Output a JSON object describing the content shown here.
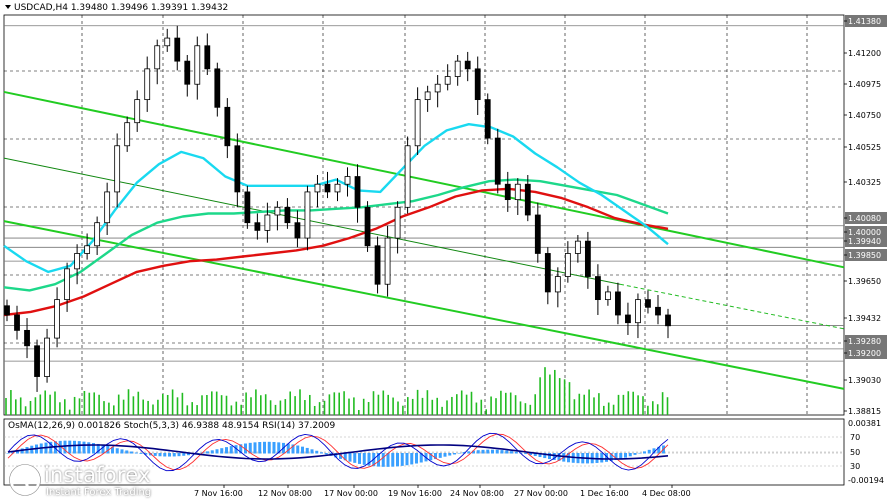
{
  "symbol_header": "USDCAD,H4  1.39480 1.39496 1.39391 1.39432",
  "oscillator_header": "OsMA(12,26,9) 0.001826  Stoch(5,3,3) 46.9388 48.9154  RSI(14) 37.2009",
  "logo": {
    "brand": "instaforex",
    "tagline": "Instant Forex Trading"
  },
  "colors": {
    "ma_fast": "#19d9f0",
    "ma_mid": "#1dd88a",
    "ma_slow": "#e01010",
    "channel": "#22cc22",
    "candle": "#000000",
    "volume": "#22bb22",
    "osma": "#3aa0ff",
    "stoch_main": "#0000cc",
    "stoch_signal": "#ff3030"
  },
  "chart_data": {
    "type": "candlestick",
    "symbol": "USDCAD",
    "timeframe": "H4",
    "ohlc_last": {
      "open": 1.3948,
      "high": 1.39496,
      "low": 1.39391,
      "close": 1.39432
    },
    "ylim": [
      1.3885,
      1.4145
    ],
    "price_labels": [
      "1.41380",
      "1.41200",
      "1.40975",
      "1.40750",
      "1.40525",
      "1.40325",
      "1.40080",
      "1.40000",
      "1.39940",
      "1.39850",
      "1.39650",
      "1.39432",
      "1.39280",
      "1.39200",
      "1.39030",
      "1.38815"
    ],
    "marked_levels": [
      1.4138,
      1.4008,
      1.4,
      1.3994,
      1.3985,
      1.39432,
      1.3928,
      1.392
    ],
    "x_labels": [
      "7 Nov 16:00",
      "12 Nov 08:00",
      "17 Nov 00:00",
      "19 Nov 16:00",
      "24 Nov 08:00",
      "27 Nov 00:00",
      "1 Dec 16:00",
      "4 Dec 08:00"
    ],
    "close": [
      1.395,
      1.394,
      1.393,
      1.391,
      1.3935,
      1.396,
      1.398,
      1.399,
      1.3995,
      1.401,
      1.403,
      1.406,
      1.4075,
      1.409,
      1.411,
      1.4125,
      1.413,
      1.4115,
      1.41,
      1.4125,
      1.411,
      1.4085,
      1.406,
      1.403,
      1.401,
      1.4005,
      1.4015,
      1.402,
      1.401,
      1.4,
      1.403,
      1.4035,
      1.403,
      1.4035,
      1.404,
      1.402,
      1.3995,
      1.397,
      1.4,
      1.402,
      1.406,
      1.409,
      1.4095,
      1.41,
      1.4105,
      1.4115,
      1.411,
      1.409,
      1.4065,
      1.4035,
      1.4025,
      1.4035,
      1.4015,
      1.399,
      1.3965,
      1.3975,
      1.399,
      1.3998,
      1.3975,
      1.396,
      1.3965,
      1.395,
      1.3945,
      1.396,
      1.3955,
      1.395,
      1.3943
    ],
    "ma_fast": [
      1.3995,
      1.3985,
      1.3978,
      1.3982,
      1.3998,
      1.4018,
      1.4036,
      1.4048,
      1.4056,
      1.4052,
      1.404,
      1.4034,
      1.4034,
      1.4034,
      1.4034,
      1.4038,
      1.4031,
      1.403,
      1.4045,
      1.406,
      1.407,
      1.4074,
      1.4072,
      1.4066,
      1.4055,
      1.4046,
      1.4036,
      1.4028,
      1.4018,
      1.4008,
      1.3996
    ],
    "ma_mid": [
      1.3968,
      1.3966,
      1.397,
      1.3978,
      1.399,
      1.4002,
      1.401,
      1.4014,
      1.4016,
      1.4016,
      1.4017,
      1.4018,
      1.4018,
      1.4019,
      1.402,
      1.4022,
      1.4024,
      1.4028,
      1.4033,
      1.4037,
      1.4038,
      1.4037,
      1.4034,
      1.4031,
      1.4028,
      1.4022,
      1.4016
    ],
    "ma_slow": [
      1.395,
      1.3952,
      1.3956,
      1.3962,
      1.397,
      1.3978,
      1.3982,
      1.3985,
      1.3986,
      1.3988,
      1.399,
      1.3992,
      1.3995,
      1.4,
      1.4006,
      1.4014,
      1.402,
      1.4027,
      1.4031,
      1.4032,
      1.403,
      1.4026,
      1.402,
      1.4013,
      1.4009,
      1.4006
    ]
  }
}
